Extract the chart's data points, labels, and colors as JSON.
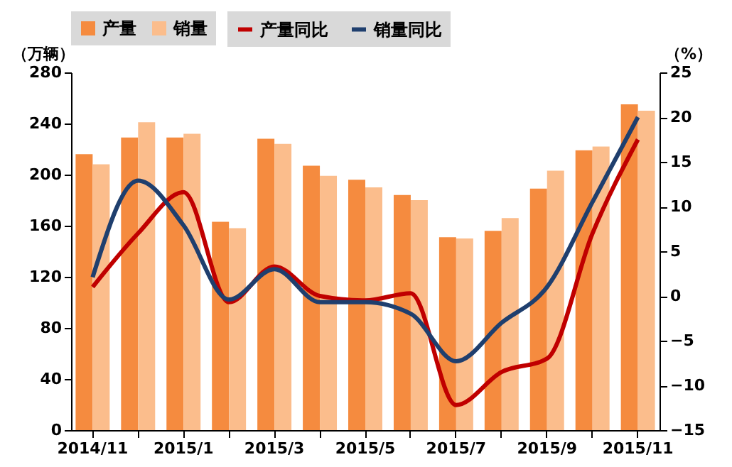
{
  "chart_data": {
    "type": "bar",
    "categories": [
      "2014/11",
      null,
      "2015/1",
      null,
      "2015/3",
      null,
      "2015/5",
      null,
      "2015/7",
      null,
      "2015/9",
      null,
      "2015/11"
    ],
    "ylabel": "（万辆）",
    "y2label": "（%）",
    "ylim": [
      0,
      280
    ],
    "yticks": [
      0,
      40,
      80,
      120,
      160,
      200,
      240,
      280
    ],
    "y2lim": [
      -15,
      25
    ],
    "y2ticks": [
      -15,
      -10,
      -5,
      0,
      5,
      10,
      15,
      20,
      25
    ],
    "grid": false,
    "legend": "top",
    "series": [
      {
        "name": "产量",
        "color": "#f58b3f",
        "values": [
          216,
          229,
          229,
          163,
          228,
          207,
          196,
          184,
          151,
          156,
          189,
          219,
          255
        ]
      },
      {
        "name": "销量",
        "color": "#fbbd8c",
        "values": [
          208,
          241,
          232,
          158,
          224,
          199,
          190,
          180,
          150,
          166,
          203,
          222,
          250
        ]
      },
      {
        "name": "产量同比",
        "type": "line",
        "axis": "y2",
        "color": "#c00000",
        "values": [
          1.0,
          7,
          11.6,
          -0.7,
          3.3,
          0,
          -0.5,
          0.3,
          -12.2,
          -8.5,
          -7,
          7,
          17.5
        ]
      },
      {
        "name": "销量同比",
        "type": "line",
        "axis": "y2",
        "color": "#1f3f6e",
        "values": [
          2.1,
          12.9,
          7.9,
          -0.4,
          3,
          -0.7,
          -0.7,
          -2,
          -7.3,
          -3,
          1,
          10.5,
          20
        ]
      }
    ]
  }
}
